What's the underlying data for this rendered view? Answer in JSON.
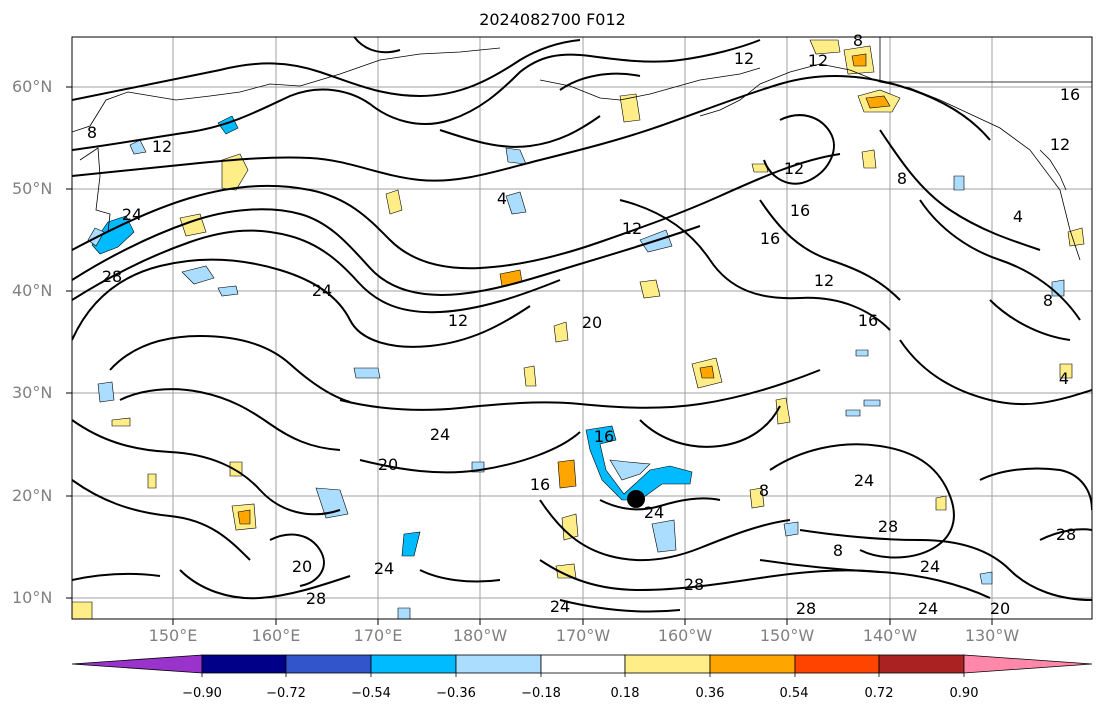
{
  "title": "2024082700 F012",
  "lat_ticks": [
    "60°N",
    "50°N",
    "40°N",
    "30°N",
    "20°N",
    "10°N"
  ],
  "lon_ticks": [
    "150°E",
    "160°E",
    "170°E",
    "180°W",
    "170°W",
    "160°W",
    "150°W",
    "140°W",
    "130°W"
  ],
  "contour_labels": [
    "8",
    "12",
    "12",
    "12",
    "16",
    "8",
    "24",
    "4",
    "12",
    "16",
    "12",
    "12",
    "4",
    "8",
    "28",
    "24",
    "12",
    "20",
    "16",
    "16",
    "12",
    "8",
    "4",
    "24",
    "20",
    "16",
    "16",
    "24",
    "24",
    "8",
    "28",
    "20",
    "28",
    "24",
    "24",
    "28",
    "28",
    "24",
    "8",
    "24",
    "20",
    "28"
  ],
  "colorbar": {
    "ticks": [
      "−0.90",
      "−0.72",
      "−0.54",
      "−0.36",
      "−0.18",
      "0.18",
      "0.36",
      "0.54",
      "0.72",
      "0.90"
    ],
    "colors": [
      "#9933cc",
      "#000088",
      "#3355cc",
      "#00bbff",
      "#aaddff",
      "#ffffff",
      "#ffee88",
      "#ffa500",
      "#ff4400",
      "#aa2222",
      "#ff88aa"
    ]
  }
}
